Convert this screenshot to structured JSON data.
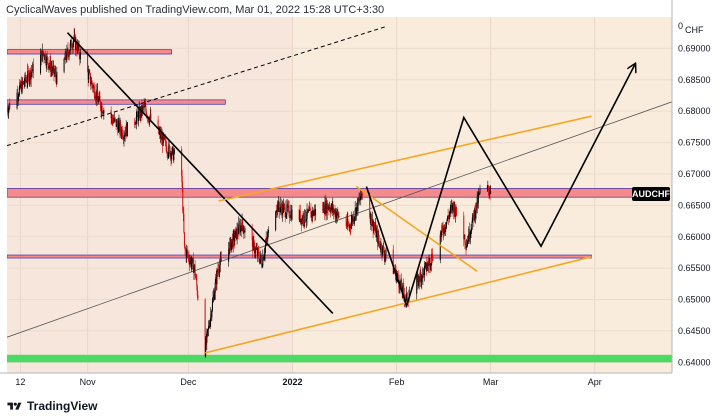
{
  "header": {
    "publisher": "CyclicalWaves",
    "text": "CyclicalWaves published on TradingView.com, Mar 01, 2022 15:28 UTC+3:30"
  },
  "footer": {
    "brand": "TradingView",
    "logo_icon": "tradingview-logo-icon"
  },
  "colors": {
    "background_left": "#f7e6dc",
    "background_right": "#f9ecdc",
    "bull_candle": "#000000",
    "bear_candle": "#d10f0f",
    "resistance_zone": "#f48a8a",
    "support_zone_green": "#4cd964",
    "channel_orange": "#f5a623",
    "trendline_black": "#000000",
    "symbol_badge": "#000000"
  },
  "chart_data": {
    "type": "candlestick",
    "symbol": "AUDCHF",
    "currency": "CHF",
    "x_ticks": [
      "12",
      "Nov",
      "Dec",
      "2022",
      "Feb",
      "Mar",
      "Apr"
    ],
    "y_ticks": [
      "0.69000",
      "0.68500",
      "0.68000",
      "0.67500",
      "0.67000",
      "0.66500",
      "0.66000",
      "0.65500",
      "0.65000",
      "0.64500",
      "0.64000"
    ],
    "ylim": [
      0.6383,
      0.695
    ],
    "x_domain_days": [
      "2021-10-08",
      "2022-04-24"
    ],
    "key_prices": [
      {
        "date": "2021-10-08",
        "price": 0.6802
      },
      {
        "date": "2021-10-19",
        "price": 0.6893
      },
      {
        "date": "2021-10-23",
        "price": 0.6852
      },
      {
        "date": "2021-10-28",
        "price": 0.6915
      },
      {
        "date": "2021-11-05",
        "price": 0.681
      },
      {
        "date": "2021-11-12",
        "price": 0.6765
      },
      {
        "date": "2021-11-18",
        "price": 0.6805
      },
      {
        "date": "2021-11-25",
        "price": 0.674
      },
      {
        "date": "2021-11-29",
        "price": 0.672
      },
      {
        "date": "2021-11-30",
        "price": 0.658
      },
      {
        "date": "2021-12-03",
        "price": 0.655
      },
      {
        "date": "2021-12-06",
        "price": 0.6415
      },
      {
        "date": "2021-12-10",
        "price": 0.655
      },
      {
        "date": "2021-12-17",
        "price": 0.662
      },
      {
        "date": "2021-12-23",
        "price": 0.656
      },
      {
        "date": "2021-12-27",
        "price": 0.665
      },
      {
        "date": "2022-01-04",
        "price": 0.663
      },
      {
        "date": "2022-01-12",
        "price": 0.665
      },
      {
        "date": "2022-01-18",
        "price": 0.6615
      },
      {
        "date": "2022-01-22",
        "price": 0.667
      },
      {
        "date": "2022-01-27",
        "price": 0.659
      },
      {
        "date": "2022-02-01",
        "price": 0.654
      },
      {
        "date": "2022-02-04",
        "price": 0.65
      },
      {
        "date": "2022-02-11",
        "price": 0.656
      },
      {
        "date": "2022-02-18",
        "price": 0.665
      },
      {
        "date": "2022-02-22",
        "price": 0.659
      },
      {
        "date": "2022-02-26",
        "price": 0.667
      },
      {
        "date": "2022-03-01",
        "price": 0.6675
      }
    ],
    "zones": [
      {
        "name": "resistance-zone-1",
        "from": "2021-10-08",
        "to": "2021-11-26",
        "low": 0.6891,
        "high": 0.6898,
        "color": "#f48a8a"
      },
      {
        "name": "resistance-zone-2",
        "from": "2021-10-08",
        "to": "2021-12-12",
        "low": 0.6811,
        "high": 0.6818,
        "color": "#f48a8a"
      },
      {
        "name": "resistance-zone-3",
        "from": "2021-10-08",
        "to": "2022-04-15",
        "low": 0.6663,
        "high": 0.6677,
        "color": "#f48a8a"
      },
      {
        "name": "support-line-zone",
        "from": "2021-10-08",
        "to": "2022-03-31",
        "low": 0.6567,
        "high": 0.657,
        "color": "#f48a8a"
      },
      {
        "name": "support-zone-green",
        "from": "2021-10-08",
        "to": "2022-04-24",
        "low": 0.64,
        "high": 0.6412,
        "color": "#4cd964"
      }
    ],
    "lines": [
      {
        "name": "upper-trend-dashed",
        "style": "dashed",
        "color": "#000000",
        "points": [
          [
            "2021-10-08",
            0.6745
          ],
          [
            "2022-01-29",
            0.6935
          ]
        ]
      },
      {
        "name": "long-trendline",
        "style": "thin",
        "color": "#555555",
        "points": [
          [
            "2021-10-08",
            0.644
          ],
          [
            "2022-04-24",
            0.6815
          ]
        ]
      },
      {
        "name": "down-projection",
        "style": "solid",
        "color": "#000000",
        "points": [
          [
            "2021-10-26",
            0.6925
          ],
          [
            "2022-01-13",
            0.6478
          ]
        ]
      },
      {
        "name": "orange-channel-upper",
        "style": "solid",
        "color": "#f5a623",
        "points": [
          [
            "2021-12-10",
            0.6657
          ],
          [
            "2022-03-31",
            0.6792
          ]
        ]
      },
      {
        "name": "orange-channel-lower",
        "style": "solid",
        "color": "#f5a623",
        "points": [
          [
            "2021-12-06",
            0.6415
          ],
          [
            "2022-03-31",
            0.6568
          ]
        ]
      },
      {
        "name": "orange-falling",
        "style": "solid",
        "color": "#f5a623",
        "points": [
          [
            "2022-01-20",
            0.668
          ],
          [
            "2022-02-25",
            0.6545
          ]
        ]
      },
      {
        "name": "wave-projection",
        "style": "solid",
        "color": "#000000",
        "points": [
          [
            "2022-01-23",
            0.668
          ],
          [
            "2022-02-04",
            0.649
          ],
          [
            "2022-02-21",
            0.679
          ],
          [
            "2022-03-16",
            0.6585
          ],
          [
            "2022-04-13",
            0.6875
          ]
        ],
        "arrow": true
      }
    ],
    "last_price_label": {
      "price": 0.6668
    }
  }
}
